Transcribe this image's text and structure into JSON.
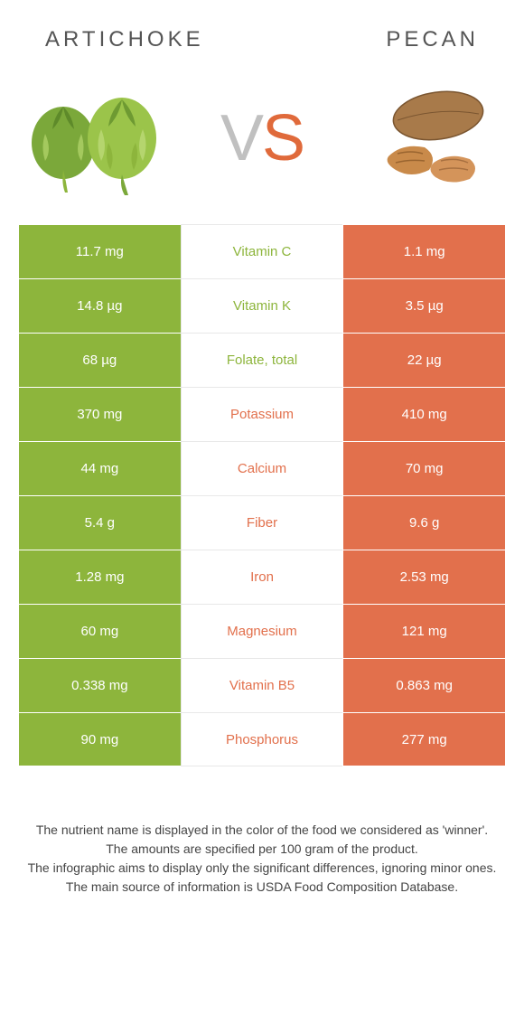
{
  "colors": {
    "green": "#8db53c",
    "orange": "#e2704c",
    "mid_text_green": "#8db53c",
    "mid_text_orange": "#e2704c",
    "header_text": "#555555"
  },
  "header": {
    "left": "ARTICHOKE",
    "right": "PECAN"
  },
  "vs": {
    "v": "V",
    "s": "S"
  },
  "rows": [
    {
      "left": "11.7 mg",
      "mid": "Vitamin C",
      "right": "1.1 mg",
      "winner": "left"
    },
    {
      "left": "14.8 µg",
      "mid": "Vitamin K",
      "right": "3.5 µg",
      "winner": "left"
    },
    {
      "left": "68 µg",
      "mid": "Folate, total",
      "right": "22 µg",
      "winner": "left"
    },
    {
      "left": "370 mg",
      "mid": "Potassium",
      "right": "410 mg",
      "winner": "right"
    },
    {
      "left": "44 mg",
      "mid": "Calcium",
      "right": "70 mg",
      "winner": "right"
    },
    {
      "left": "5.4 g",
      "mid": "Fiber",
      "right": "9.6 g",
      "winner": "right"
    },
    {
      "left": "1.28 mg",
      "mid": "Iron",
      "right": "2.53 mg",
      "winner": "right"
    },
    {
      "left": "60 mg",
      "mid": "Magnesium",
      "right": "121 mg",
      "winner": "right"
    },
    {
      "left": "0.338 mg",
      "mid": "Vitamin B5",
      "right": "0.863 mg",
      "winner": "right"
    },
    {
      "left": "90 mg",
      "mid": "Phosphorus",
      "right": "277 mg",
      "winner": "right"
    }
  ],
  "footer": {
    "line1": "The nutrient name is displayed in the color of the food we considered as 'winner'.",
    "line2": "The amounts are specified per 100 gram of the product.",
    "line3": "The infographic aims to display only the significant differences, ignoring minor ones.",
    "line4": "The main source of information is USDA Food Composition Database."
  }
}
